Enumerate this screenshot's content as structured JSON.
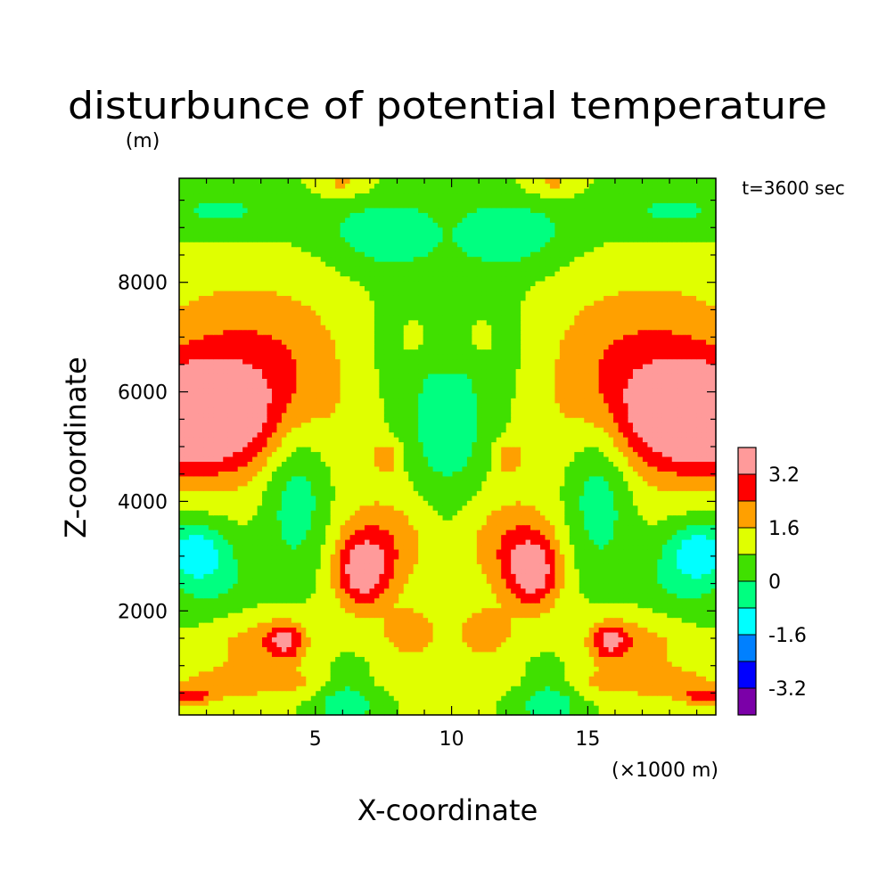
{
  "chart_data": {
    "type": "heatmap",
    "title": "disturbunce of potential temperature",
    "y_unit": "(m)",
    "xlabel": "X-coordinate",
    "x_unit": "(×1000 m)",
    "ylabel": "Z-coordinate",
    "annotation": "t=3600 sec",
    "xlim": [
      0,
      19.7
    ],
    "ylim": [
      100,
      9900
    ],
    "x_ticks": [
      5,
      10,
      15
    ],
    "x_tick_labels": [
      "5",
      "10",
      "15"
    ],
    "y_ticks": [
      2000,
      4000,
      6000,
      8000
    ],
    "y_tick_labels": [
      "2000",
      "4000",
      "6000",
      "8000"
    ],
    "colorbar": {
      "levels": [
        -4.0,
        -3.2,
        -2.4,
        -1.6,
        -0.8,
        0,
        0.8,
        1.6,
        2.4,
        3.2,
        4.0
      ],
      "colors": [
        "#7b00a8",
        "#0000ff",
        "#0080ff",
        "#00ffff",
        "#00ff80",
        "#40e000",
        "#e0ff00",
        "#ffa000",
        "#ff0000",
        "#ff9a9a"
      ],
      "tick_labels": [
        "-3.2",
        "-1.6",
        "0",
        "1.6",
        "3.2"
      ],
      "tick_values": [
        -3.2,
        -1.6,
        0,
        1.6,
        3.2
      ]
    },
    "features": [
      {
        "x": 1.0,
        "z": 5500,
        "value": 4.0
      },
      {
        "x": 18.7,
        "z": 5500,
        "value": 4.0
      },
      {
        "x": 1.5,
        "z": 3100,
        "value": -1.2
      },
      {
        "x": 18.2,
        "z": 3100,
        "value": -1.2
      },
      {
        "x": 6.8,
        "z": 2800,
        "value": 3.0
      },
      {
        "x": 12.9,
        "z": 2800,
        "value": 3.0
      },
      {
        "x": 4.0,
        "z": 1500,
        "value": 2.7
      },
      {
        "x": 15.7,
        "z": 1500,
        "value": 2.7
      },
      {
        "x": 9.85,
        "z": 5100,
        "value": -1.0
      },
      {
        "x": 9.85,
        "z": 6700,
        "value": 0.2
      },
      {
        "x": 9.85,
        "z": 9000,
        "value": 1.0
      },
      {
        "x": 9.85,
        "z": 1500,
        "value": 1.2
      },
      {
        "x": 6.0,
        "z": 300,
        "value": -1.0
      },
      {
        "x": 13.7,
        "z": 300,
        "value": -1.0
      }
    ]
  }
}
